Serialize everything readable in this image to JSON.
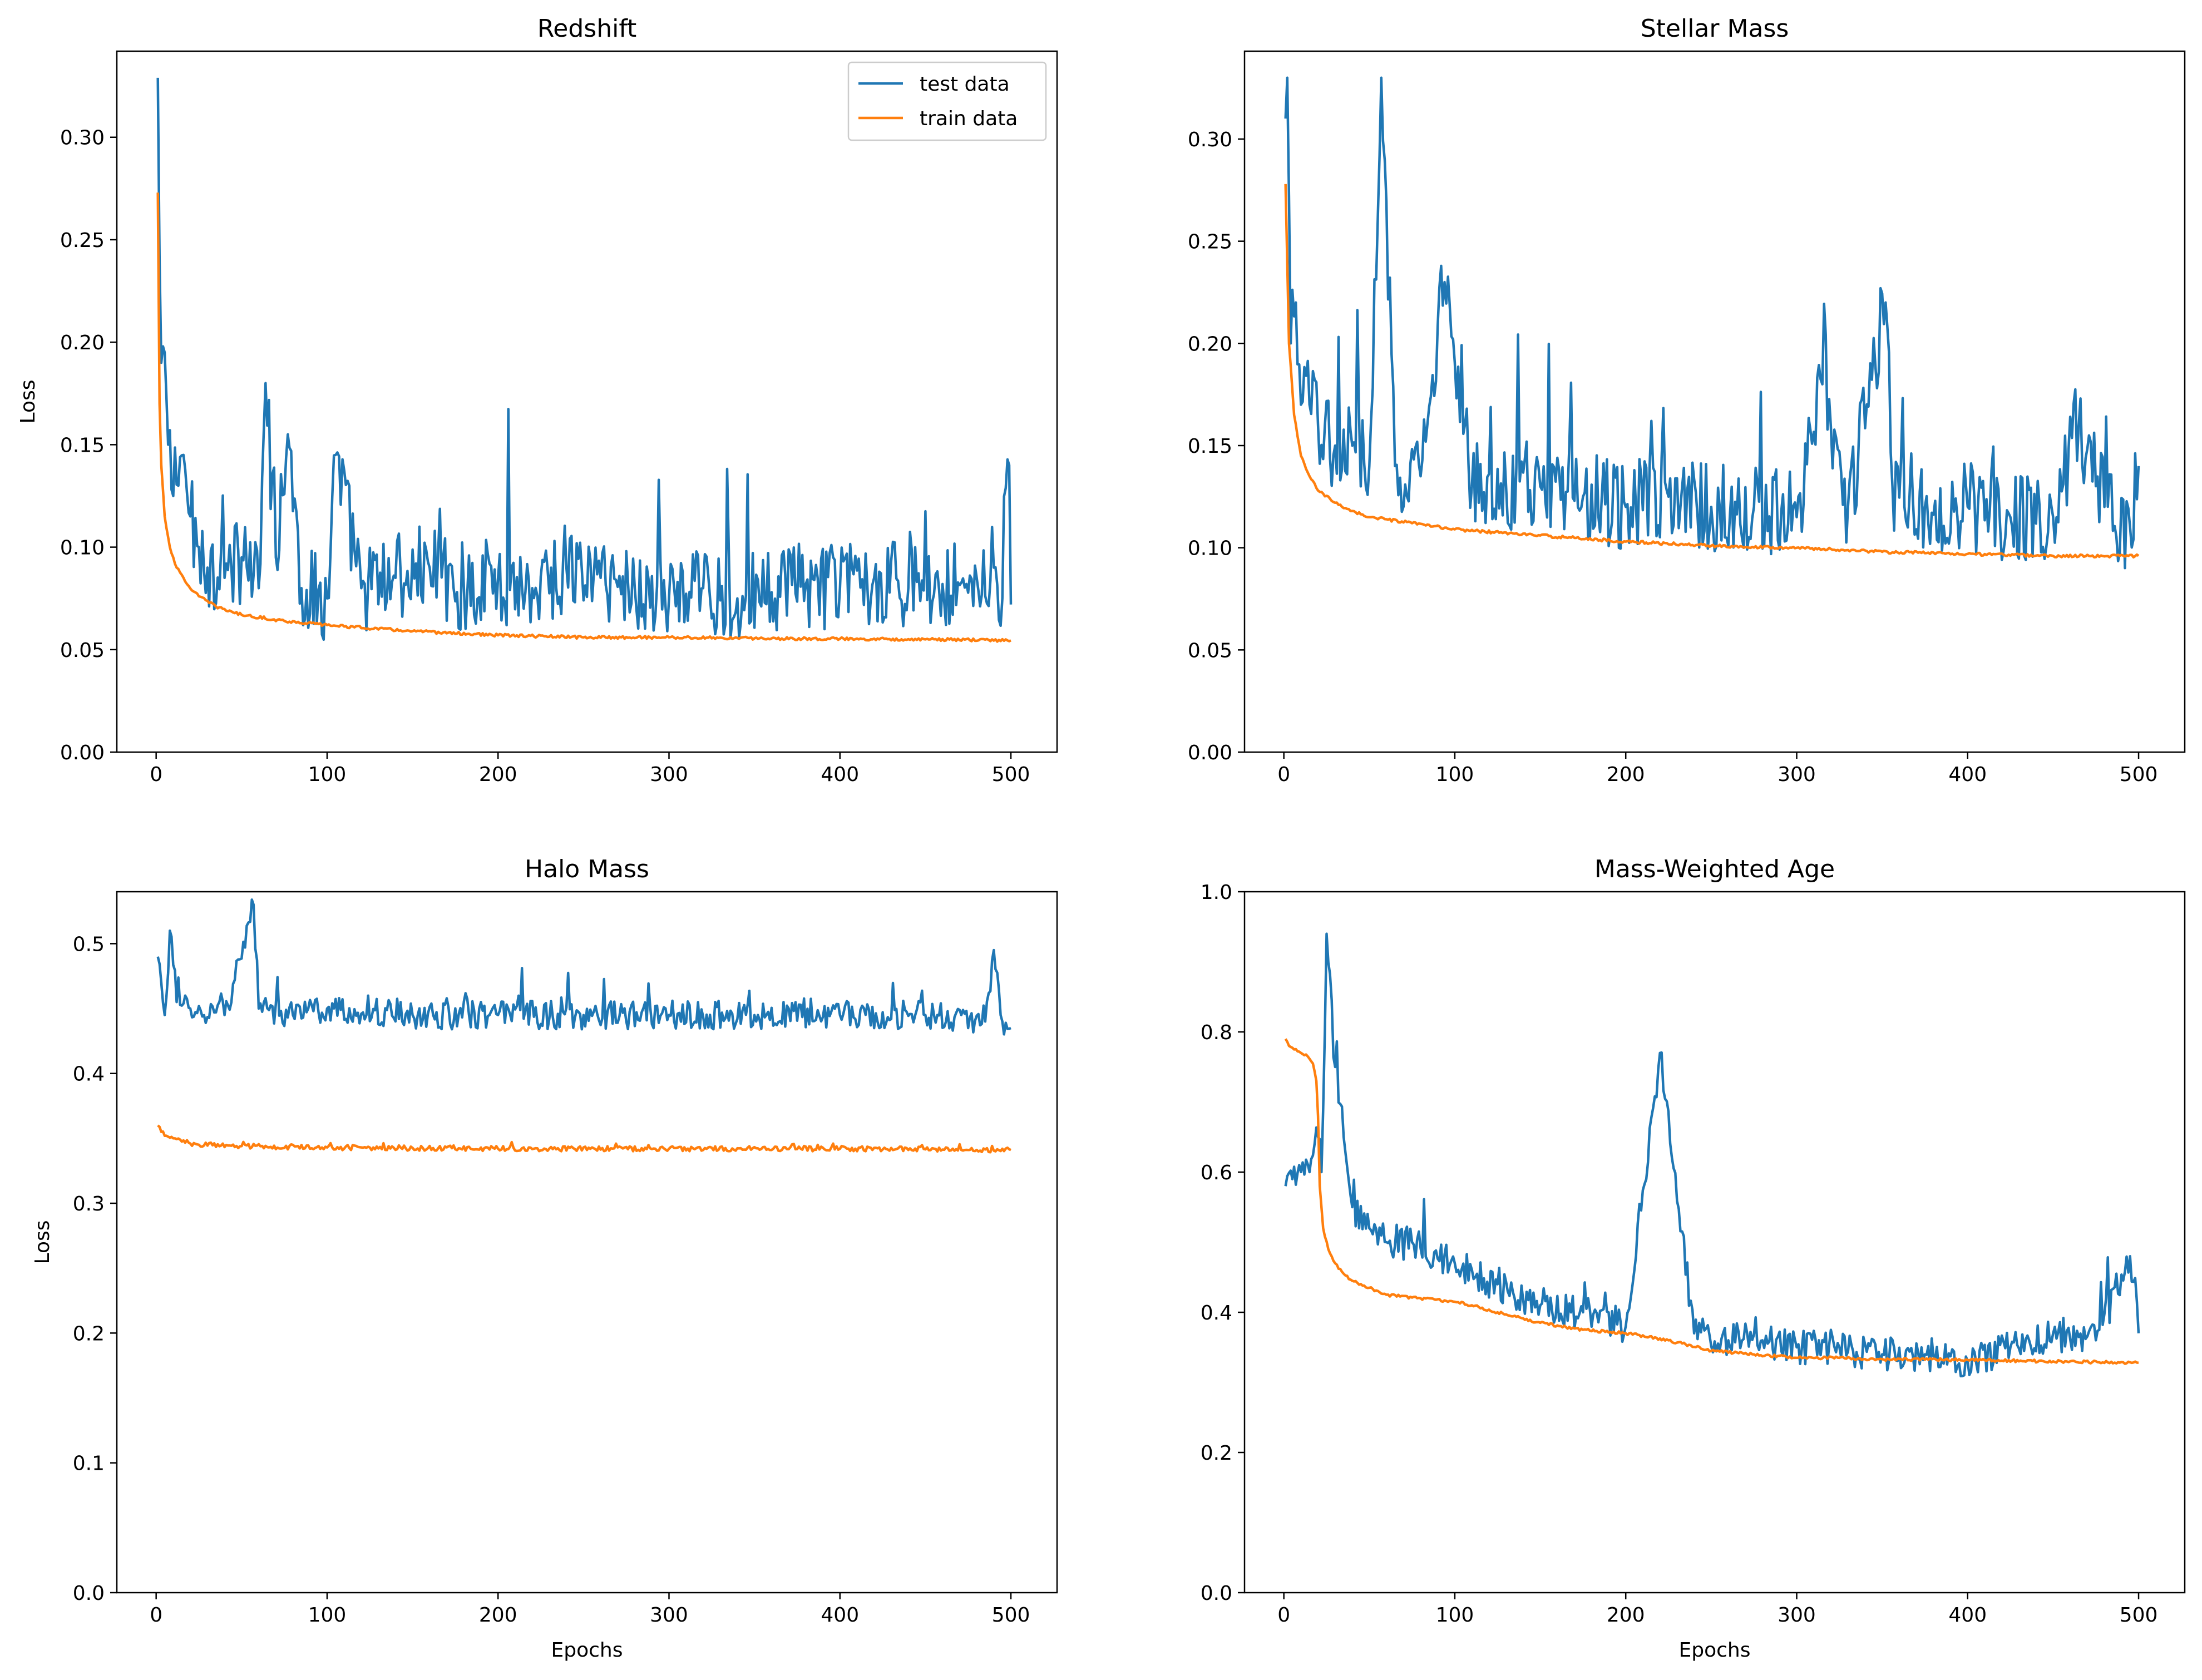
{
  "figure": {
    "series_names": [
      "test data",
      "train data"
    ],
    "series_colors": {
      "test data": "#1f77b4",
      "train data": "#ff7f0e"
    }
  },
  "chart_data": [
    {
      "type": "line",
      "title": "Redshift",
      "xlabel": "",
      "ylabel": "Loss",
      "xlim": [
        -23,
        527
      ],
      "ylim": [
        0,
        0.342
      ],
      "xticks": [
        0,
        100,
        200,
        300,
        400,
        500
      ],
      "yticks": [
        0.0,
        0.05,
        0.1,
        0.15,
        0.2,
        0.25,
        0.3
      ],
      "ytick_labels": [
        "0.00",
        "0.05",
        "0.10",
        "0.15",
        "0.20",
        "0.25",
        "0.30"
      ],
      "legend": {
        "location": "upper right",
        "entries": [
          "test data",
          "train data"
        ]
      },
      "series": [
        {
          "name": "test data",
          "x": [
            1,
            2,
            3,
            5,
            7,
            10,
            13,
            16,
            20,
            25,
            30,
            40,
            50,
            60,
            64,
            70,
            77,
            85,
            100,
            105,
            120,
            140,
            160,
            180,
            200,
            220,
            240,
            260,
            280,
            300,
            320,
            340,
            360,
            380,
            400,
            420,
            440,
            460,
            480,
            490,
            495,
            499,
            500
          ],
          "y": [
            0.329,
            0.24,
            0.19,
            0.195,
            0.15,
            0.125,
            0.13,
            0.145,
            0.115,
            0.1,
            0.09,
            0.085,
            0.095,
            0.08,
            0.18,
            0.095,
            0.155,
            0.08,
            0.075,
            0.145,
            0.08,
            0.085,
            0.09,
            0.08,
            0.085,
            0.08,
            0.09,
            0.085,
            0.08,
            0.075,
            0.08,
            0.075,
            0.078,
            0.082,
            0.08,
            0.085,
            0.08,
            0.082,
            0.085,
            0.09,
            0.075,
            0.14,
            0.072
          ],
          "noise": 0.022,
          "spikes": 0.35
        },
        {
          "name": "train data",
          "x": [
            1,
            2,
            3,
            5,
            8,
            12,
            18,
            25,
            35,
            50,
            75,
            100,
            150,
            200,
            250,
            300,
            350,
            400,
            450,
            500
          ],
          "y": [
            0.273,
            0.17,
            0.14,
            0.115,
            0.1,
            0.09,
            0.082,
            0.076,
            0.071,
            0.067,
            0.064,
            0.062,
            0.059,
            0.057,
            0.056,
            0.056,
            0.0555,
            0.0553,
            0.055,
            0.0545
          ],
          "noise": 0.0007,
          "spikes": 0
        }
      ]
    },
    {
      "type": "line",
      "title": "Stellar Mass",
      "xlabel": "",
      "ylabel": "",
      "xlim": [
        -23,
        527
      ],
      "ylim": [
        0,
        0.343
      ],
      "xticks": [
        0,
        100,
        200,
        300,
        400,
        500
      ],
      "yticks": [
        0.0,
        0.05,
        0.1,
        0.15,
        0.2,
        0.25,
        0.3
      ],
      "ytick_labels": [
        "0.00",
        "0.05",
        "0.10",
        "0.15",
        "0.20",
        "0.25",
        "0.30"
      ],
      "legend": null,
      "series": [
        {
          "name": "test data",
          "x": [
            1,
            2,
            4,
            7,
            10,
            15,
            20,
            30,
            40,
            50,
            57,
            65,
            80,
            94,
            110,
            130,
            150,
            175,
            200,
            225,
            250,
            275,
            300,
            315,
            330,
            352,
            356,
            375,
            400,
            425,
            450,
            465,
            480,
            495,
            500
          ],
          "y": [
            0.31,
            0.33,
            0.2,
            0.22,
            0.17,
            0.17,
            0.16,
            0.15,
            0.15,
            0.14,
            0.33,
            0.14,
            0.135,
            0.23,
            0.13,
            0.13,
            0.13,
            0.125,
            0.12,
            0.125,
            0.12,
            0.12,
            0.115,
            0.18,
            0.12,
            0.22,
            0.13,
            0.12,
            0.12,
            0.115,
            0.115,
            0.16,
            0.12,
            0.11,
            0.14
          ],
          "noise": 0.022,
          "spikes": 0.3
        },
        {
          "name": "train data",
          "x": [
            1,
            3,
            6,
            10,
            15,
            20,
            30,
            40,
            50,
            75,
            100,
            150,
            200,
            250,
            300,
            350,
            400,
            450,
            500
          ],
          "y": [
            0.278,
            0.2,
            0.165,
            0.145,
            0.135,
            0.128,
            0.122,
            0.118,
            0.115,
            0.112,
            0.109,
            0.106,
            0.103,
            0.101,
            0.1,
            0.098,
            0.097,
            0.096,
            0.096
          ],
          "noise": 0.0007,
          "spikes": 0
        }
      ]
    },
    {
      "type": "line",
      "title": "Halo Mass",
      "xlabel": "Epochs",
      "ylabel": "Loss",
      "xlim": [
        -23,
        527
      ],
      "ylim": [
        0,
        0.54
      ],
      "xticks": [
        0,
        100,
        200,
        300,
        400,
        500
      ],
      "yticks": [
        0.0,
        0.1,
        0.2,
        0.3,
        0.4,
        0.5
      ],
      "ytick_labels": [
        "0.0",
        "0.1",
        "0.2",
        "0.3",
        "0.4",
        "0.5"
      ],
      "legend": null,
      "series": [
        {
          "name": "test data",
          "x": [
            1,
            3,
            5,
            8,
            12,
            20,
            40,
            57,
            60,
            80,
            100,
            150,
            200,
            250,
            300,
            350,
            400,
            450,
            485,
            490,
            495,
            500
          ],
          "y": [
            0.49,
            0.47,
            0.445,
            0.51,
            0.455,
            0.45,
            0.445,
            0.53,
            0.45,
            0.445,
            0.45,
            0.445,
            0.445,
            0.445,
            0.445,
            0.445,
            0.445,
            0.445,
            0.44,
            0.495,
            0.44,
            0.435
          ],
          "noise": 0.011,
          "spikes": 0.2
        },
        {
          "name": "train data",
          "x": [
            1,
            5,
            10,
            20,
            50,
            100,
            200,
            300,
            400,
            500
          ],
          "y": [
            0.36,
            0.352,
            0.35,
            0.346,
            0.344,
            0.343,
            0.342,
            0.342,
            0.342,
            0.341
          ],
          "noise": 0.002,
          "spikes": 0.05
        }
      ]
    },
    {
      "type": "line",
      "title": "Mass-Weighted Age",
      "xlabel": "Epochs",
      "ylabel": "",
      "xlim": [
        -23,
        527
      ],
      "ylim": [
        0,
        1.0
      ],
      "xticks": [
        0,
        100,
        200,
        300,
        400,
        500
      ],
      "yticks": [
        0.0,
        0.2,
        0.4,
        0.6,
        0.8,
        1.0
      ],
      "ytick_labels": [
        "0.0",
        "0.2",
        "0.4",
        "0.6",
        "0.8",
        "1.0"
      ],
      "legend": null,
      "series": [
        {
          "name": "test data",
          "x": [
            1,
            5,
            10,
            15,
            20,
            22,
            25,
            30,
            35,
            40,
            50,
            60,
            75,
            100,
            125,
            150,
            175,
            200,
            220,
            240,
            260,
            280,
            300,
            325,
            350,
            375,
            400,
            425,
            450,
            475,
            495,
            500
          ],
          "y": [
            0.58,
            0.59,
            0.6,
            0.6,
            0.65,
            0.6,
            0.94,
            0.75,
            0.65,
            0.55,
            0.52,
            0.5,
            0.5,
            0.47,
            0.44,
            0.41,
            0.4,
            0.38,
            0.77,
            0.37,
            0.36,
            0.36,
            0.35,
            0.35,
            0.34,
            0.34,
            0.33,
            0.35,
            0.37,
            0.36,
            0.48,
            0.37
          ],
          "noise": 0.025,
          "spikes": 0.3
        },
        {
          "name": "train data",
          "x": [
            1,
            3,
            6,
            10,
            14,
            17,
            19,
            20,
            21,
            23,
            26,
            30,
            35,
            40,
            50,
            60,
            80,
            100,
            110,
            125,
            150,
            175,
            200,
            225,
            250,
            275,
            300,
            325,
            350,
            400,
            450,
            500
          ],
          "y": [
            0.79,
            0.78,
            0.775,
            0.77,
            0.765,
            0.755,
            0.73,
            0.68,
            0.58,
            0.52,
            0.49,
            0.47,
            0.455,
            0.445,
            0.435,
            0.425,
            0.42,
            0.415,
            0.41,
            0.4,
            0.385,
            0.375,
            0.37,
            0.36,
            0.345,
            0.34,
            0.335,
            0.335,
            0.333,
            0.332,
            0.33,
            0.328
          ],
          "noise": 0.002,
          "spikes": 0
        }
      ]
    }
  ]
}
